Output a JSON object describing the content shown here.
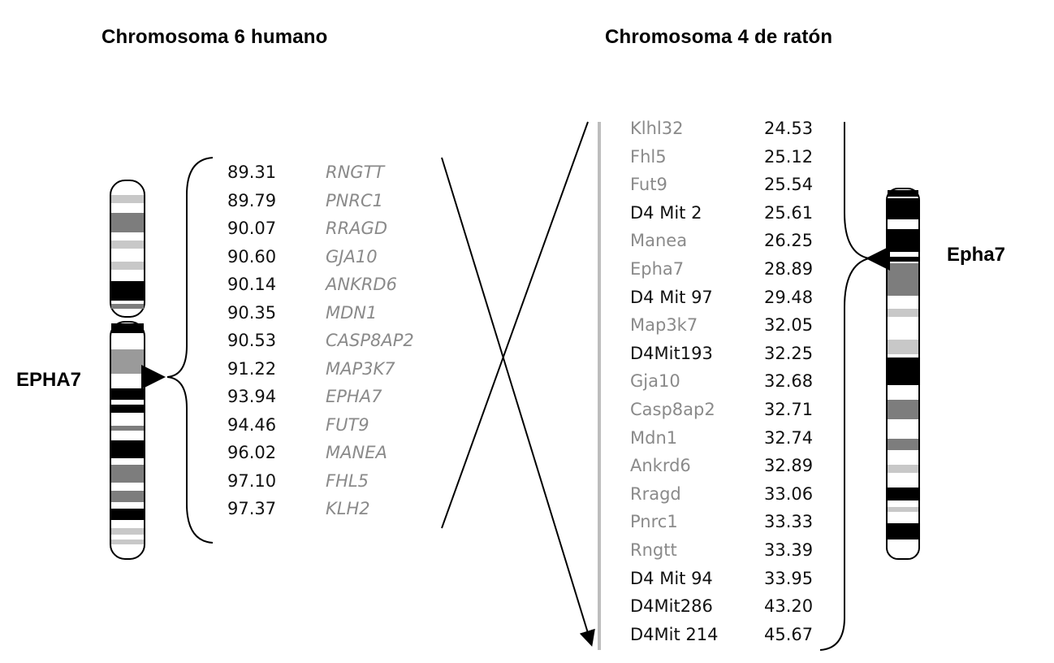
{
  "titles": {
    "human": "Chromosoma 6 humano",
    "mouse": "Chromosoma 4 de ratón"
  },
  "labels": {
    "human_gene": "EPHA7",
    "mouse_gene": "Epha7"
  },
  "human_rows": [
    {
      "pos": "89.31",
      "gene": "RNGTT"
    },
    {
      "pos": "89.79",
      "gene": "PNRC1"
    },
    {
      "pos": "90.07",
      "gene": "RRAGD"
    },
    {
      "pos": "90.60",
      "gene": "GJA10"
    },
    {
      "pos": "90.14",
      "gene": "ANKRD6"
    },
    {
      "pos": "90.35",
      "gene": "MDN1"
    },
    {
      "pos": "90.53",
      "gene": "CASP8AP2"
    },
    {
      "pos": "91.22",
      "gene": "MAP3K7"
    },
    {
      "pos": "93.94",
      "gene": "EPHA7"
    },
    {
      "pos": "94.46",
      "gene": "FUT9"
    },
    {
      "pos": "96.02",
      "gene": "MANEA"
    },
    {
      "pos": "97.10",
      "gene": "FHL5"
    },
    {
      "pos": "97.37",
      "gene": "KLH2"
    }
  ],
  "mouse_rows": [
    {
      "gene": "Klhl32",
      "pos": "24.53",
      "kind": "gene"
    },
    {
      "gene": "Fhl5",
      "pos": "25.12",
      "kind": "gene"
    },
    {
      "gene": "Fut9",
      "pos": "25.54",
      "kind": "gene"
    },
    {
      "gene": "D4 Mit 2",
      "pos": "25.61",
      "kind": "marker"
    },
    {
      "gene": "Manea",
      "pos": "26.25",
      "kind": "gene"
    },
    {
      "gene": "Epha7",
      "pos": "28.89",
      "kind": "gene"
    },
    {
      "gene": "D4 Mit 97",
      "pos": "29.48",
      "kind": "marker"
    },
    {
      "gene": "Map3k7",
      "pos": "32.05",
      "kind": "gene"
    },
    {
      "gene": "D4Mit193",
      "pos": "32.25",
      "kind": "marker"
    },
    {
      "gene": "Gja10",
      "pos": "32.68",
      "kind": "gene"
    },
    {
      "gene": "Casp8ap2",
      "pos": "32.71",
      "kind": "gene"
    },
    {
      "gene": "Mdn1",
      "pos": "32.74",
      "kind": "gene"
    },
    {
      "gene": "Ankrd6",
      "pos": "32.89",
      "kind": "gene"
    },
    {
      "gene": "Rragd",
      "pos": "33.06",
      "kind": "gene"
    },
    {
      "gene": "Pnrc1",
      "pos": "33.33",
      "kind": "gene"
    },
    {
      "gene": "Rngtt",
      "pos": "33.39",
      "kind": "gene"
    },
    {
      "gene": "D4 Mit 94",
      "pos": "33.95",
      "kind": "marker"
    },
    {
      "gene": "D4Mit286",
      "pos": "43.20",
      "kind": "marker"
    },
    {
      "gene": "D4Mit 214",
      "pos": "45.67",
      "kind": "marker"
    }
  ],
  "colors": {
    "gene_text": "#8a8a8a",
    "marker_text": "#111111",
    "band_dark": "#000000",
    "band_mid": "#7d7d7d",
    "band_light": "#c8c8c8",
    "axis_line": "#bdbdbd"
  }
}
